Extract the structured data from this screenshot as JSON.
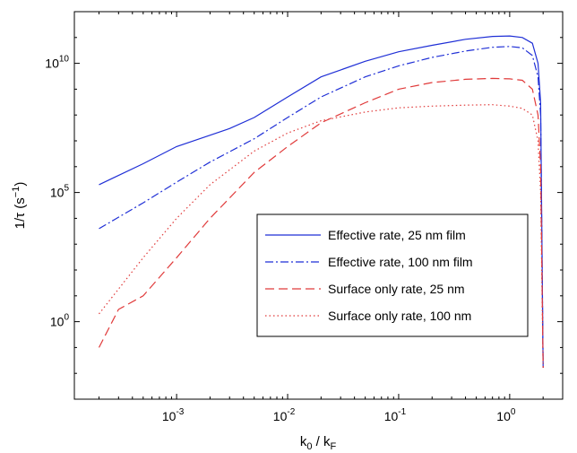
{
  "chart_data": {
    "type": "line",
    "xlabel": "k0 / kF",
    "ylabel": "1/τ (s−1)",
    "xscale": "log",
    "yscale": "log",
    "xlim": [
      0.00012,
      3
    ],
    "ylim": [
      0.001,
      1000000000000.0
    ],
    "grid": false,
    "legend_position": "lower-right",
    "x_ticks": [
      {
        "base": "10",
        "exp": "-3"
      },
      {
        "base": "10",
        "exp": "-2"
      },
      {
        "base": "10",
        "exp": "-1"
      },
      {
        "base": "10",
        "exp": "0"
      }
    ],
    "y_ticks": [
      {
        "base": "10",
        "exp": "0"
      },
      {
        "base": "10",
        "exp": "5"
      },
      {
        "base": "10",
        "exp": "10"
      }
    ],
    "series": [
      {
        "name": "Effective rate, 25 nm film",
        "color": "#1f2fd6",
        "dash": "solid",
        "x": [
          0.0002,
          0.0005,
          0.001,
          0.003,
          0.005,
          0.01,
          0.02,
          0.05,
          0.1,
          0.2,
          0.4,
          0.7,
          1.0,
          1.3,
          1.6,
          1.8,
          1.9,
          2.0
        ],
        "y": [
          200000.0,
          1300000.0,
          6000000.0,
          30000000.0,
          80000000.0,
          500000000.0,
          3000000000.0,
          12000000000.0,
          28000000000.0,
          50000000000.0,
          85000000000.0,
          110000000000.0,
          115000000000.0,
          100000000000.0,
          60000000000.0,
          10000000000.0,
          300000000.0,
          0.01
        ]
      },
      {
        "name": "Effective rate, 100 nm film",
        "color": "#1f2fd6",
        "dash": "dashdot",
        "x": [
          0.0002,
          0.0005,
          0.001,
          0.002,
          0.005,
          0.01,
          0.02,
          0.05,
          0.1,
          0.2,
          0.4,
          0.7,
          1.0,
          1.3,
          1.6,
          1.8,
          1.9,
          2.0
        ],
        "y": [
          4000.0,
          40000.0,
          250000.0,
          1500000.0,
          12000000.0,
          80000000.0,
          500000000.0,
          3000000000.0,
          8000000000.0,
          17000000000.0,
          30000000000.0,
          42000000000.0,
          45000000000.0,
          40000000000.0,
          20000000000.0,
          3000000000.0,
          100000000.0,
          0.01
        ]
      },
      {
        "name": "Surface only rate, 25 nm",
        "color": "#e03a3a",
        "dash": "dashed",
        "x": [
          0.0002,
          0.0003,
          0.0005,
          0.001,
          0.002,
          0.005,
          0.01,
          0.02,
          0.05,
          0.1,
          0.2,
          0.4,
          0.7,
          1.0,
          1.3,
          1.6,
          1.8,
          1.9,
          2.0
        ],
        "y": [
          0.1,
          3.0,
          10.0,
          300.0,
          10000.0,
          600000.0,
          6000000.0,
          50000000.0,
          300000000.0,
          1000000000.0,
          1800000000.0,
          2400000000.0,
          2600000000.0,
          2500000000.0,
          2200000000.0,
          1000000000.0,
          100000000.0,
          1000000.0,
          0.01
        ]
      },
      {
        "name": "Surface only rate, 100 nm",
        "color": "#e03a3a",
        "dash": "dotted",
        "x": [
          0.0002,
          0.0005,
          0.001,
          0.002,
          0.005,
          0.01,
          0.02,
          0.05,
          0.1,
          0.2,
          0.4,
          0.7,
          1.0,
          1.3,
          1.6,
          1.8,
          1.9,
          2.0
        ],
        "y": [
          2.0,
          300.0,
          10000.0,
          200000.0,
          4000000.0,
          20000000.0,
          60000000.0,
          130000000.0,
          190000000.0,
          220000000.0,
          240000000.0,
          250000000.0,
          220000000.0,
          180000000.0,
          100000000.0,
          10000000.0,
          100000.0,
          0.01
        ]
      }
    ]
  }
}
